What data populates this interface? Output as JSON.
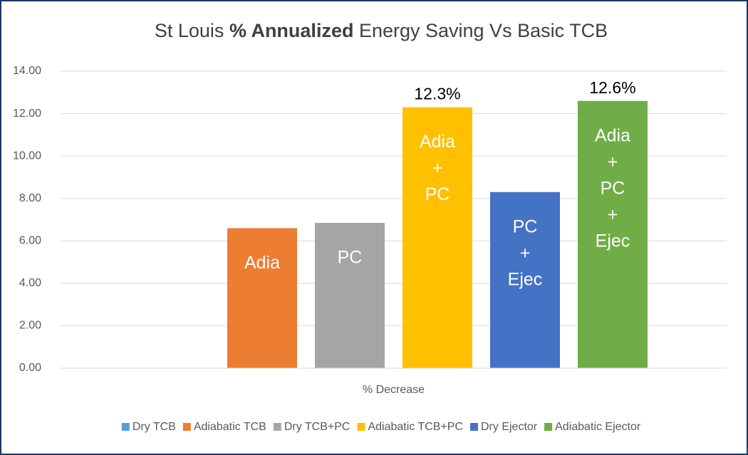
{
  "chart_data": {
    "type": "bar",
    "title": [
      {
        "text": "St Louis "
      },
      {
        "text": "% Annualized",
        "bold": true
      },
      {
        "text": " Energy Saving Vs Basic TCB"
      }
    ],
    "categories": [
      "% Decrease"
    ],
    "series": [
      {
        "name": "Dry TCB",
        "color": "#5b9bd5",
        "values": [
          0
        ]
      },
      {
        "name": "Adiabatic TCB",
        "color": "#ed7d31",
        "values": [
          6.6
        ],
        "annotation": [
          "Adia"
        ]
      },
      {
        "name": "Dry TCB+PC",
        "color": "#a5a5a5",
        "values": [
          6.85
        ],
        "annotation": [
          "PC"
        ]
      },
      {
        "name": "Adiabatic TCB+PC",
        "color": "#ffc000",
        "values": [
          12.3
        ],
        "value_labels": [
          "12.3%"
        ],
        "annotation": [
          "Adia",
          "+",
          "PC"
        ]
      },
      {
        "name": "Dry Ejector",
        "color": "#4472c4",
        "values": [
          8.3
        ],
        "annotation": [
          "PC",
          "+",
          "Ejec"
        ]
      },
      {
        "name": "Adiabatic Ejector",
        "color": "#70ad47",
        "values": [
          12.6
        ],
        "value_labels": [
          "12.6%"
        ],
        "annotation": [
          "Adia",
          "+",
          "PC",
          "+",
          "Ejec"
        ]
      }
    ],
    "ylim": [
      0,
      14
    ],
    "yticks": [
      {
        "value": 0,
        "label": "0.00"
      },
      {
        "value": 2,
        "label": "2.00"
      },
      {
        "value": 4,
        "label": "4.00"
      },
      {
        "value": 6,
        "label": "6.00"
      },
      {
        "value": 8,
        "label": "8.00"
      },
      {
        "value": 10,
        "label": "10.00"
      },
      {
        "value": 12,
        "label": "12.00"
      },
      {
        "value": 14,
        "label": "14.00"
      }
    ],
    "grid": true,
    "legend": "bottom"
  }
}
